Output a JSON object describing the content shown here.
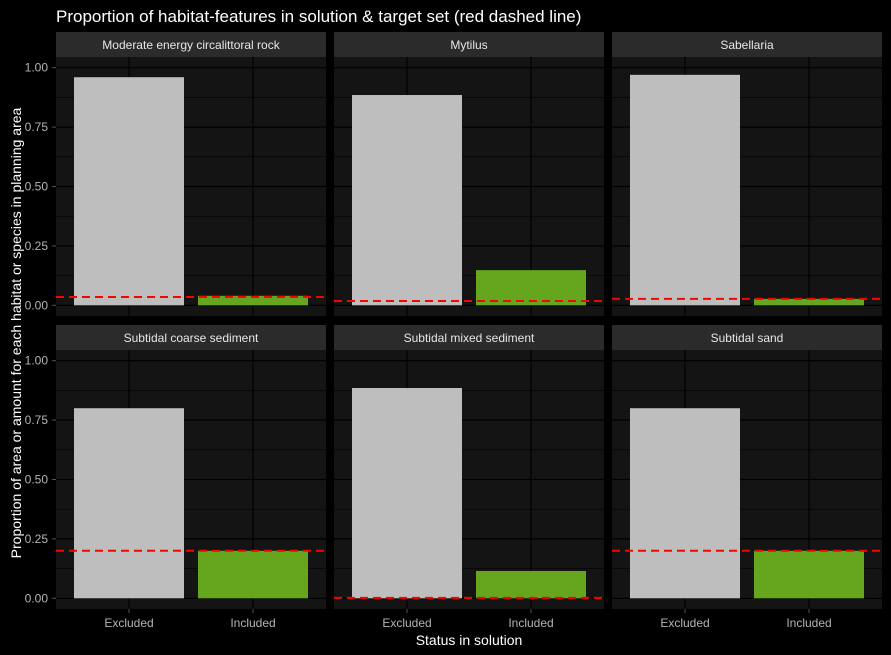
{
  "chart_data": {
    "type": "bar",
    "title": "Proportion of habitat-features in solution & target set (red dashed line)",
    "xlabel": "Status in solution",
    "ylabel": "Proportion of area or amount for each habitat or species in planning area",
    "categories": [
      "Excluded",
      "Included"
    ],
    "ylim": [
      0,
      1.0
    ],
    "yticks": [
      "0.00",
      "0.25",
      "0.50",
      "0.75",
      "1.00"
    ],
    "ytick_values": [
      0,
      0.25,
      0.5,
      0.75,
      1.0
    ],
    "colors": {
      "Excluded": "#bebebe",
      "Included": "#66a61e",
      "target_line": "#ff0000",
      "panel": "#141414",
      "strip": "#2b2b2b",
      "grid": "#000000"
    },
    "grid": true,
    "panels": [
      {
        "name": "Moderate energy circalittoral rock",
        "values": [
          0.96,
          0.04
        ],
        "target": 0.035
      },
      {
        "name": "Mytilus",
        "values": [
          0.885,
          0.148
        ],
        "target": 0.018
      },
      {
        "name": "Sabellaria",
        "values": [
          0.97,
          0.027
        ],
        "target": 0.027
      },
      {
        "name": "Subtidal coarse sediment",
        "values": [
          0.8,
          0.2
        ],
        "target": 0.2
      },
      {
        "name": "Subtidal mixed sediment",
        "values": [
          0.885,
          0.115
        ],
        "target": 0.002
      },
      {
        "name": "Subtidal sand",
        "values": [
          0.8,
          0.2
        ],
        "target": 0.2
      }
    ]
  }
}
